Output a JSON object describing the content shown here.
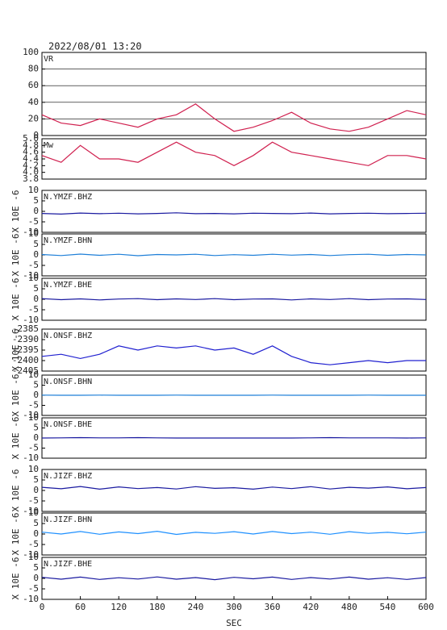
{
  "chart_data": [
    {
      "type": "line",
      "title": "2022/08/01 13:20",
      "label": "VR",
      "xlim": [
        0,
        600
      ],
      "ylim": [
        0,
        100
      ],
      "yticks": [
        0,
        20,
        40,
        60,
        80,
        100
      ],
      "grid": true,
      "x": [
        0,
        30,
        60,
        90,
        120,
        150,
        180,
        210,
        240,
        270,
        300,
        330,
        360,
        390,
        420,
        450,
        480,
        510,
        540,
        570,
        600
      ],
      "series": [
        {
          "color": "#d0204f",
          "values": [
            25,
            15,
            12,
            20,
            15,
            10,
            20,
            25,
            38,
            20,
            5,
            10,
            18,
            28,
            15,
            8,
            5,
            10,
            20,
            30,
            25
          ]
        }
      ]
    },
    {
      "type": "line",
      "label": "Mw",
      "xlim": [
        0,
        600
      ],
      "ylim": [
        3.8,
        5.0
      ],
      "yticks": [
        3.8,
        {
          "value": 4,
          "label": "4.0"
        },
        4.2,
        4.4,
        4.6,
        4.8,
        {
          "value": 5,
          "label": "5.0"
        }
      ],
      "grid": false,
      "x": [
        0,
        30,
        60,
        90,
        120,
        150,
        180,
        210,
        240,
        270,
        300,
        330,
        360,
        390,
        420,
        450,
        480,
        510,
        540,
        570,
        600
      ],
      "series": [
        {
          "color": "#d0204f",
          "values": [
            4.5,
            4.3,
            4.8,
            4.4,
            4.4,
            4.3,
            4.6,
            4.9,
            4.6,
            4.5,
            4.2,
            4.5,
            4.9,
            4.6,
            4.5,
            4.4,
            4.3,
            4.2,
            4.5,
            4.5,
            4.4
          ]
        }
      ]
    },
    {
      "type": "line",
      "label": "N.YMZF.BHZ",
      "ylabel": "X 10E -6",
      "xlim": [
        0,
        600
      ],
      "ylim": [
        -10,
        10
      ],
      "yticks": [
        -10,
        -5,
        0,
        5,
        10
      ],
      "grid": false,
      "x": [
        0,
        30,
        60,
        90,
        120,
        150,
        180,
        210,
        240,
        270,
        300,
        330,
        360,
        390,
        420,
        450,
        480,
        510,
        540,
        570,
        600
      ],
      "series": [
        {
          "color": "#1a1aa0",
          "values": [
            -1,
            -1.3,
            -0.8,
            -1.1,
            -0.9,
            -1.2,
            -1,
            -0.7,
            -1.1,
            -1,
            -1.2,
            -0.9,
            -1,
            -1.1,
            -0.8,
            -1.2,
            -1,
            -0.9,
            -1.1,
            -1,
            -0.9
          ]
        }
      ]
    },
    {
      "type": "line",
      "label": "N.YMZF.BHN",
      "ylabel": "X 10E -6",
      "xlim": [
        0,
        600
      ],
      "ylim": [
        -10,
        10
      ],
      "yticks": [
        -10,
        -5,
        0,
        5,
        10
      ],
      "grid": false,
      "x": [
        0,
        30,
        60,
        90,
        120,
        150,
        180,
        210,
        240,
        270,
        300,
        330,
        360,
        390,
        420,
        450,
        480,
        510,
        540,
        570,
        600
      ],
      "series": [
        {
          "color": "#1e7fd8",
          "values": [
            0.2,
            -0.3,
            0.4,
            -0.2,
            0.3,
            -0.4,
            0.2,
            0,
            0.3,
            -0.3,
            0.1,
            -0.2,
            0.3,
            -0.1,
            0.2,
            -0.3,
            0.1,
            0.3,
            -0.2,
            0.2,
            0
          ]
        }
      ]
    },
    {
      "type": "line",
      "label": "N.YMZF.BHE",
      "ylabel": "X 10E -6",
      "xlim": [
        0,
        600
      ],
      "ylim": [
        -10,
        10
      ],
      "yticks": [
        -10,
        -5,
        0,
        5,
        10
      ],
      "grid": false,
      "x": [
        0,
        30,
        60,
        90,
        120,
        150,
        180,
        210,
        240,
        270,
        300,
        330,
        360,
        390,
        420,
        450,
        480,
        510,
        540,
        570,
        600
      ],
      "series": [
        {
          "color": "#1a1aa0",
          "values": [
            0.3,
            -0.2,
            0.2,
            -0.3,
            0.1,
            0.3,
            -0.2,
            0.2,
            -0.1,
            0.3,
            -0.2,
            0.1,
            0.2,
            -0.3,
            0.2,
            -0.1,
            0.3,
            -0.2,
            0.1,
            0.2,
            -0.1
          ]
        }
      ]
    },
    {
      "type": "line",
      "label": "N.ONSF.BHZ",
      "ylabel": "X 10E -6",
      "xlim": [
        0,
        600
      ],
      "ylim": [
        -2405,
        -2385
      ],
      "yticks": [
        -2405,
        -2400,
        -2395,
        -2390,
        -2385
      ],
      "grid": false,
      "x": [
        0,
        30,
        60,
        90,
        120,
        150,
        180,
        210,
        240,
        270,
        300,
        330,
        360,
        390,
        420,
        450,
        480,
        510,
        540,
        570,
        600
      ],
      "series": [
        {
          "color": "#2020d0",
          "values": [
            -2398,
            -2397,
            -2399,
            -2397,
            -2393,
            -2395,
            -2393,
            -2394,
            -2393,
            -2395,
            -2394,
            -2397,
            -2393,
            -2398,
            -2401,
            -2402,
            -2401,
            -2400,
            -2401,
            -2400,
            -2400
          ]
        }
      ]
    },
    {
      "type": "line",
      "label": "N.ONSF.BHN",
      "ylabel": "X 10E -6",
      "xlim": [
        0,
        600
      ],
      "ylim": [
        -10,
        10
      ],
      "yticks": [
        -10,
        -5,
        0,
        5,
        10
      ],
      "grid": false,
      "x": [
        0,
        30,
        60,
        90,
        120,
        150,
        180,
        210,
        240,
        270,
        300,
        330,
        360,
        390,
        420,
        450,
        480,
        510,
        540,
        570,
        600
      ],
      "series": [
        {
          "color": "#1e7fd8",
          "values": [
            0.1,
            0,
            0,
            0.1,
            0,
            0,
            0,
            0.1,
            0,
            0,
            0,
            0,
            0.1,
            0,
            0,
            0,
            0,
            0.1,
            0,
            0,
            0
          ]
        }
      ]
    },
    {
      "type": "line",
      "label": "N.ONSF.BHE",
      "ylabel": "X 10E -6",
      "xlim": [
        0,
        600
      ],
      "ylim": [
        -10,
        10
      ],
      "yticks": [
        -10,
        -5,
        0,
        5,
        10
      ],
      "grid": false,
      "x": [
        0,
        30,
        60,
        90,
        120,
        150,
        180,
        210,
        240,
        270,
        300,
        330,
        360,
        390,
        420,
        450,
        480,
        510,
        540,
        570,
        600
      ],
      "series": [
        {
          "color": "#1a1aa0",
          "values": [
            0,
            0.1,
            0.2,
            0.1,
            0.1,
            0.2,
            0.1,
            0,
            0,
            0,
            0,
            0,
            0,
            0,
            0.1,
            0.2,
            0.1,
            0.1,
            0.1,
            0,
            0.1
          ]
        }
      ]
    },
    {
      "type": "line",
      "label": "N.JIZF.BHZ",
      "ylabel": "X 10E -6",
      "xlim": [
        0,
        600
      ],
      "ylim": [
        -10,
        10
      ],
      "yticks": [
        -10,
        -5,
        0,
        5,
        10
      ],
      "grid": false,
      "x": [
        0,
        30,
        60,
        90,
        120,
        150,
        180,
        210,
        240,
        270,
        300,
        330,
        360,
        390,
        420,
        450,
        480,
        510,
        540,
        570,
        600
      ],
      "series": [
        {
          "color": "#1a1aa0",
          "values": [
            1.5,
            0.8,
            1.9,
            0.6,
            1.7,
            0.9,
            1.4,
            0.7,
            1.8,
            1,
            1.3,
            0.6,
            1.6,
            0.9,
            1.8,
            0.7,
            1.5,
            1.1,
            1.7,
            0.8,
            1.4
          ]
        }
      ]
    },
    {
      "type": "line",
      "label": "N.JIZF.BHN",
      "ylabel": "X 10E -6",
      "xlim": [
        0,
        600
      ],
      "ylim": [
        -10,
        10
      ],
      "yticks": [
        -10,
        -5,
        0,
        5,
        10
      ],
      "grid": false,
      "x": [
        0,
        30,
        60,
        90,
        120,
        150,
        180,
        210,
        240,
        270,
        300,
        330,
        360,
        390,
        420,
        450,
        480,
        510,
        540,
        570,
        600
      ],
      "series": [
        {
          "color": "#1e90ff",
          "values": [
            0.9,
            0,
            1.2,
            -0.1,
            1,
            0.2,
            1.3,
            -0.2,
            0.8,
            0.3,
            1.1,
            0,
            1.2,
            0.2,
            0.9,
            -0.1,
            1.1,
            0.3,
            0.8,
            0.1,
            0.9
          ]
        }
      ]
    },
    {
      "type": "line",
      "label": "N.JIZF.BHE",
      "ylabel": "X 10E -6",
      "xlabel": "SEC",
      "xlim": [
        0,
        600
      ],
      "ylim": [
        -10,
        10
      ],
      "yticks": [
        -10,
        -5,
        0,
        5,
        10
      ],
      "xticks": [
        0,
        60,
        120,
        180,
        240,
        300,
        360,
        420,
        480,
        540,
        600
      ],
      "grid": false,
      "x": [
        0,
        30,
        60,
        90,
        120,
        150,
        180,
        210,
        240,
        270,
        300,
        330,
        360,
        390,
        420,
        450,
        480,
        510,
        540,
        570,
        600
      ],
      "series": [
        {
          "color": "#1a1aa0",
          "values": [
            0.5,
            -0.4,
            0.6,
            -0.5,
            0.3,
            -0.3,
            0.7,
            -0.4,
            0.4,
            -0.6,
            0.5,
            -0.2,
            0.6,
            -0.5,
            0.4,
            -0.3,
            0.6,
            -0.4,
            0.3,
            -0.5,
            0.4
          ]
        }
      ]
    }
  ]
}
